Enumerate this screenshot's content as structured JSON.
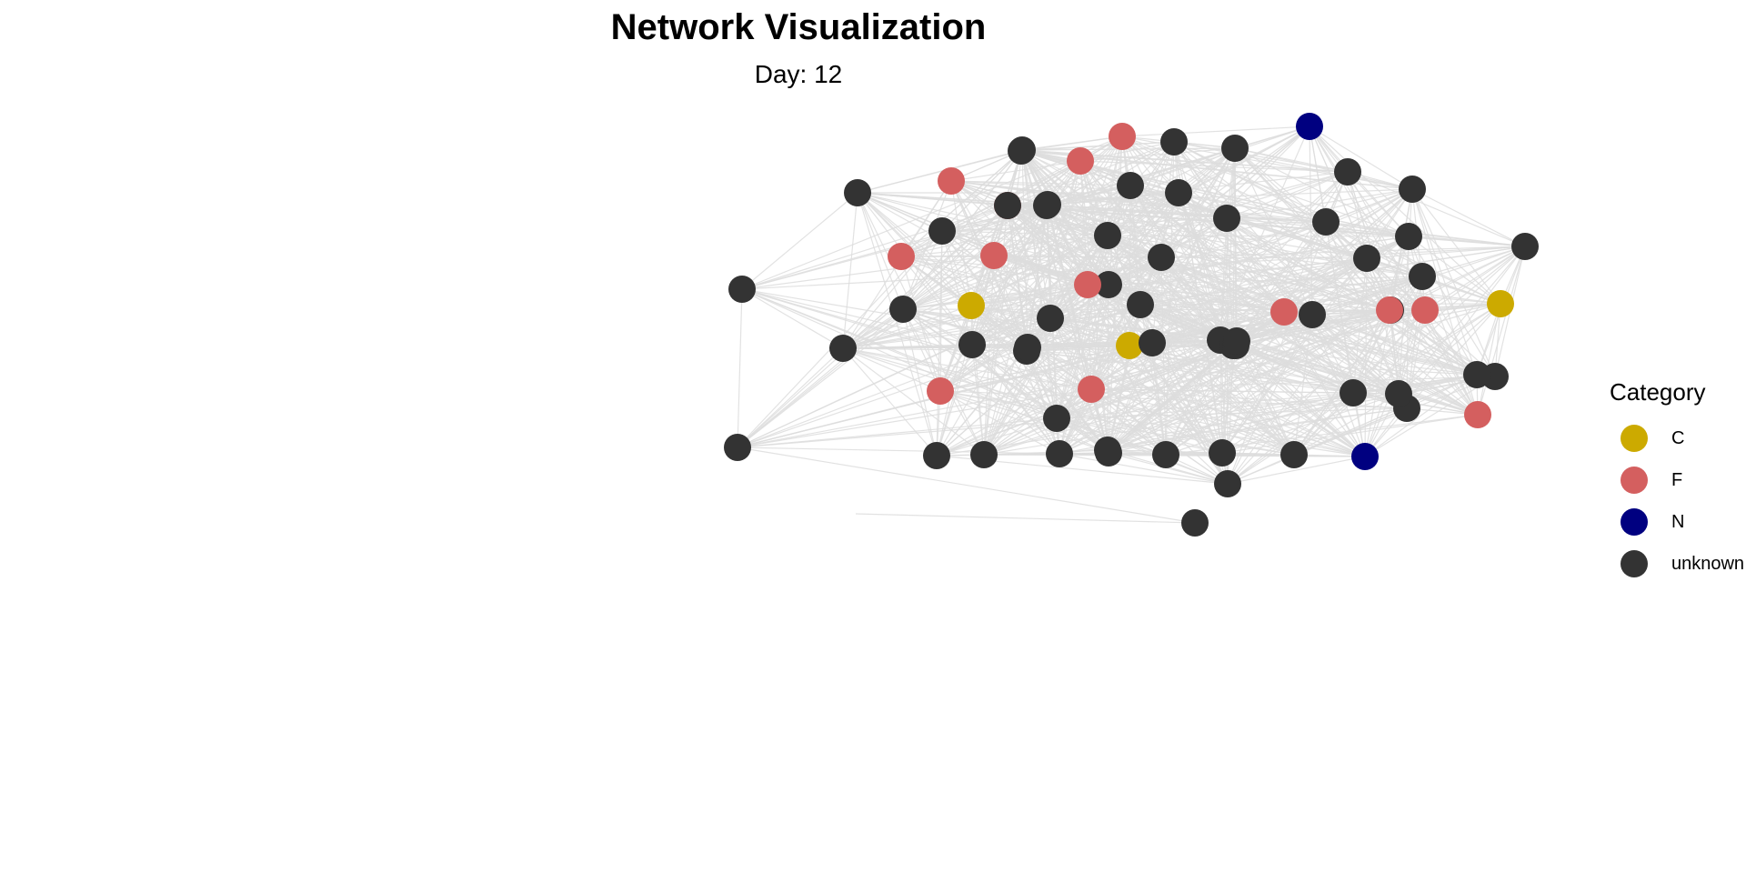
{
  "title": "Network Visualization",
  "subtitle": "Day: 12",
  "legend": {
    "title": "Category",
    "items": [
      {
        "label": "C",
        "color": "#CCAA00"
      },
      {
        "label": "F",
        "color": "#D45F5F"
      },
      {
        "label": "N",
        "color": "#000080"
      },
      {
        "label": "unknown",
        "color": "#333333"
      }
    ]
  },
  "colors": {
    "edge": "#DDDDDD",
    "C": "#CCAA00",
    "F": "#D45F5F",
    "N": "#000080",
    "unknown": "#333333"
  },
  "chart_data": {
    "type": "network",
    "node_categories": [
      "F",
      "N",
      "F",
      "unknown",
      "unknown",
      "unknown",
      "unknown",
      "F",
      "unknown",
      "F",
      "unknown",
      "unknown",
      "unknown",
      "unknown",
      "unknown",
      "F",
      "unknown",
      "F",
      "unknown",
      "unknown",
      "unknown",
      "unknown",
      "unknown",
      "unknown",
      "unknown",
      "unknown",
      "unknown",
      "unknown",
      "unknown",
      "C",
      "unknown",
      "unknown",
      "F",
      "unknown",
      "F",
      "unknown",
      "unknown",
      "unknown",
      "C",
      "unknown",
      "unknown",
      "unknown",
      "unknown",
      "unknown",
      "unknown",
      "unknown",
      "F",
      "F",
      "unknown",
      "unknown",
      "unknown",
      "unknown",
      "unknown",
      "C",
      "unknown",
      "unknown",
      "F",
      "F",
      "unknown",
      "unknown",
      "unknown",
      "unknown",
      "unknown",
      "unknown",
      "N",
      "F",
      "unknown",
      "unknown",
      "unknown",
      "unknown",
      "unknown",
      "unknown"
    ]
  }
}
